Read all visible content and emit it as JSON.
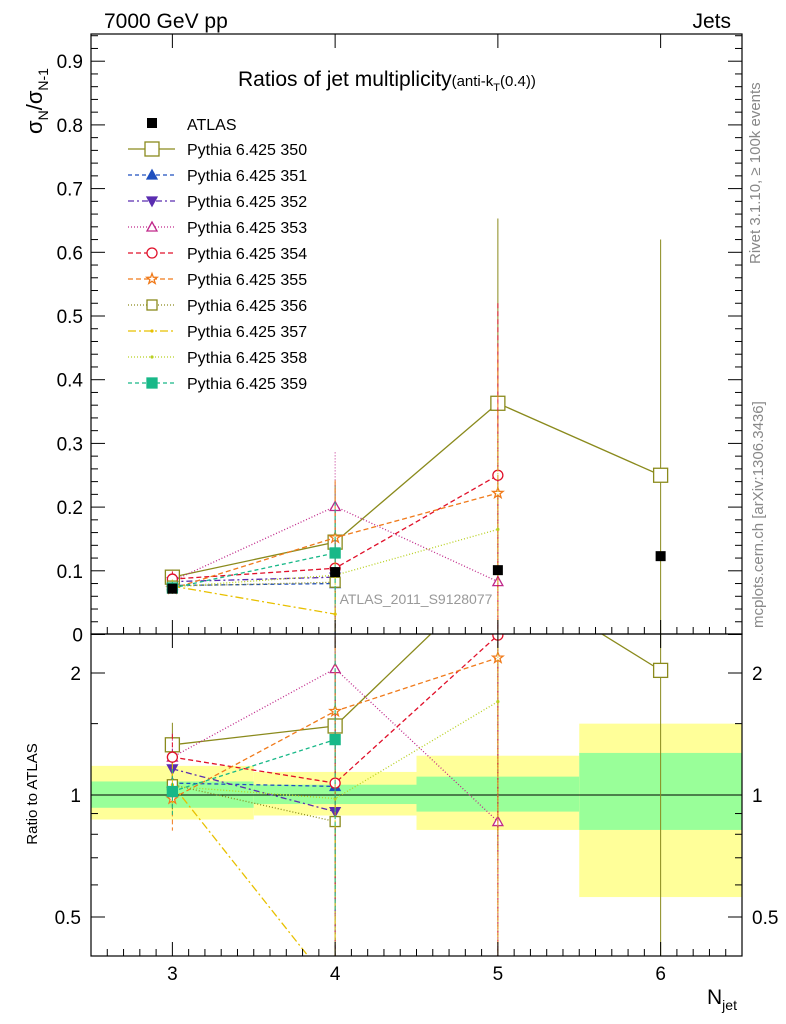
{
  "header": {
    "left": "7000 GeV pp",
    "right": "Jets"
  },
  "side_labels": {
    "rivet": "Rivet 3.1.10, ≥ 100k events",
    "mcplots": "mcplots.cern.ch [arXiv:1306.3436]"
  },
  "watermark": "ATLAS_2011_S9128077",
  "chart_data": {
    "type": "line",
    "title": "Ratios of jet multiplicity",
    "title_suffix": "(anti-k",
    "title_sub": "T",
    "title_tail": "(0.4))",
    "ylabel_main": "σ",
    "ylabel_sub1": "N",
    "ylabel_mid": "/σ",
    "ylabel_sub2": "N-1",
    "ylabel_ratio": "Ratio to ATLAS",
    "xlabel": "N",
    "xlabel_sub": "jet",
    "xlim": [
      2.5,
      6.5
    ],
    "ylim": [
      0,
      0.95
    ],
    "ratio_ylim": [
      0.42,
      2.3
    ],
    "x_ticks": [
      "3",
      "4",
      "5",
      "6"
    ],
    "y_ticks": [
      "0",
      "0.1",
      "0.2",
      "0.3",
      "0.4",
      "0.5",
      "0.6",
      "0.7",
      "0.8",
      "0.9"
    ],
    "ratio_ticks": [
      "0.5",
      "1",
      "2"
    ],
    "atlas": {
      "name": "ATLAS",
      "x": [
        3,
        4,
        5,
        6
      ],
      "y": [
        0.072,
        0.098,
        0.101,
        0.123
      ],
      "band_inner": [
        [
          0.93,
          1.08
        ],
        [
          0.95,
          1.06
        ],
        [
          0.91,
          1.11
        ],
        [
          0.82,
          1.27
        ]
      ],
      "band_outer": [
        [
          0.87,
          1.18
        ],
        [
          0.89,
          1.14
        ],
        [
          0.82,
          1.25
        ],
        [
          0.56,
          1.5
        ]
      ]
    },
    "series": [
      {
        "name": "Pythia 6.425 350",
        "color": "#8a8a1c",
        "dash": "",
        "marker": "open-square",
        "x": [
          3,
          4,
          5,
          6
        ],
        "y": [
          0.09,
          0.145,
          0.363,
          0.25
        ],
        "ratio": [
          1.33,
          1.48,
          3.6,
          2.03
        ],
        "err": [
          0.012,
          0.09,
          0.29,
          0.37
        ]
      },
      {
        "name": "Pythia 6.425 351",
        "color": "#1f4fbf",
        "dash": "4,3",
        "marker": "filled-triangle-up",
        "x": [
          3,
          4
        ],
        "y": [
          0.077,
          0.08
        ],
        "ratio": [
          1.07,
          1.05
        ],
        "err": [
          0.01,
          0.08
        ]
      },
      {
        "name": "Pythia 6.425 352",
        "color": "#5a2db0",
        "dash": "6,3,2,3",
        "marker": "filled-triangle-down",
        "x": [
          3,
          4
        ],
        "y": [
          0.083,
          0.09
        ],
        "ratio": [
          1.16,
          0.91
        ],
        "err": [
          0.01,
          0.08
        ]
      },
      {
        "name": "Pythia 6.425 353",
        "color": "#c0288a",
        "dash": "1,2",
        "marker": "open-triangle-up",
        "x": [
          3,
          4,
          5
        ],
        "y": [
          0.084,
          0.201,
          0.083
        ],
        "ratio": [
          1.24,
          2.05,
          0.86
        ],
        "err": [
          0.012,
          0.085,
          0.12
        ]
      },
      {
        "name": "Pythia 6.425 354",
        "color": "#e0102a",
        "dash": "5,3",
        "marker": "open-circle",
        "x": [
          3,
          4,
          5
        ],
        "y": [
          0.087,
          0.104,
          0.25
        ],
        "ratio": [
          1.24,
          1.07,
          2.48
        ],
        "err": [
          0.012,
          0.09,
          0.27
        ]
      },
      {
        "name": "Pythia 6.425 355",
        "color": "#f07a1a",
        "dash": "5,3",
        "marker": "open-star",
        "x": [
          3,
          4,
          5
        ],
        "y": [
          0.072,
          0.152,
          0.222
        ],
        "ratio": [
          0.98,
          1.61,
          2.18
        ],
        "err": [
          0.012,
          0.09,
          0.23
        ]
      },
      {
        "name": "Pythia 6.425 356",
        "color": "#8a8a1c",
        "dash": "1,2",
        "marker": "open-square",
        "x": [
          3,
          4
        ],
        "y": [
          0.076,
          0.082
        ],
        "ratio": [
          1.06,
          0.86
        ],
        "err": [
          0.01,
          0.08
        ]
      },
      {
        "name": "Pythia 6.425 357",
        "color": "#e8c000",
        "dash": "8,3,2,3",
        "marker": "tiny",
        "x": [
          3,
          4
        ],
        "y": [
          0.076,
          0.032
        ],
        "ratio": [
          1.06,
          0.33
        ],
        "err": [
          0.01,
          0.06
        ]
      },
      {
        "name": "Pythia 6.425 358",
        "color": "#b8d020",
        "dash": "1,2",
        "marker": "tiny",
        "x": [
          3,
          4,
          5
        ],
        "y": [
          0.075,
          0.093,
          0.165
        ],
        "ratio": [
          1.05,
          0.98,
          1.7
        ],
        "err": [
          0.01,
          0.08,
          0.15
        ]
      },
      {
        "name": "Pythia 6.425 359",
        "color": "#18b888",
        "dash": "4,3",
        "marker": "filled-square",
        "x": [
          3,
          4
        ],
        "y": [
          0.073,
          0.128
        ],
        "ratio": [
          1.02,
          1.37
        ],
        "err": [
          0.01,
          0.08
        ]
      }
    ]
  }
}
